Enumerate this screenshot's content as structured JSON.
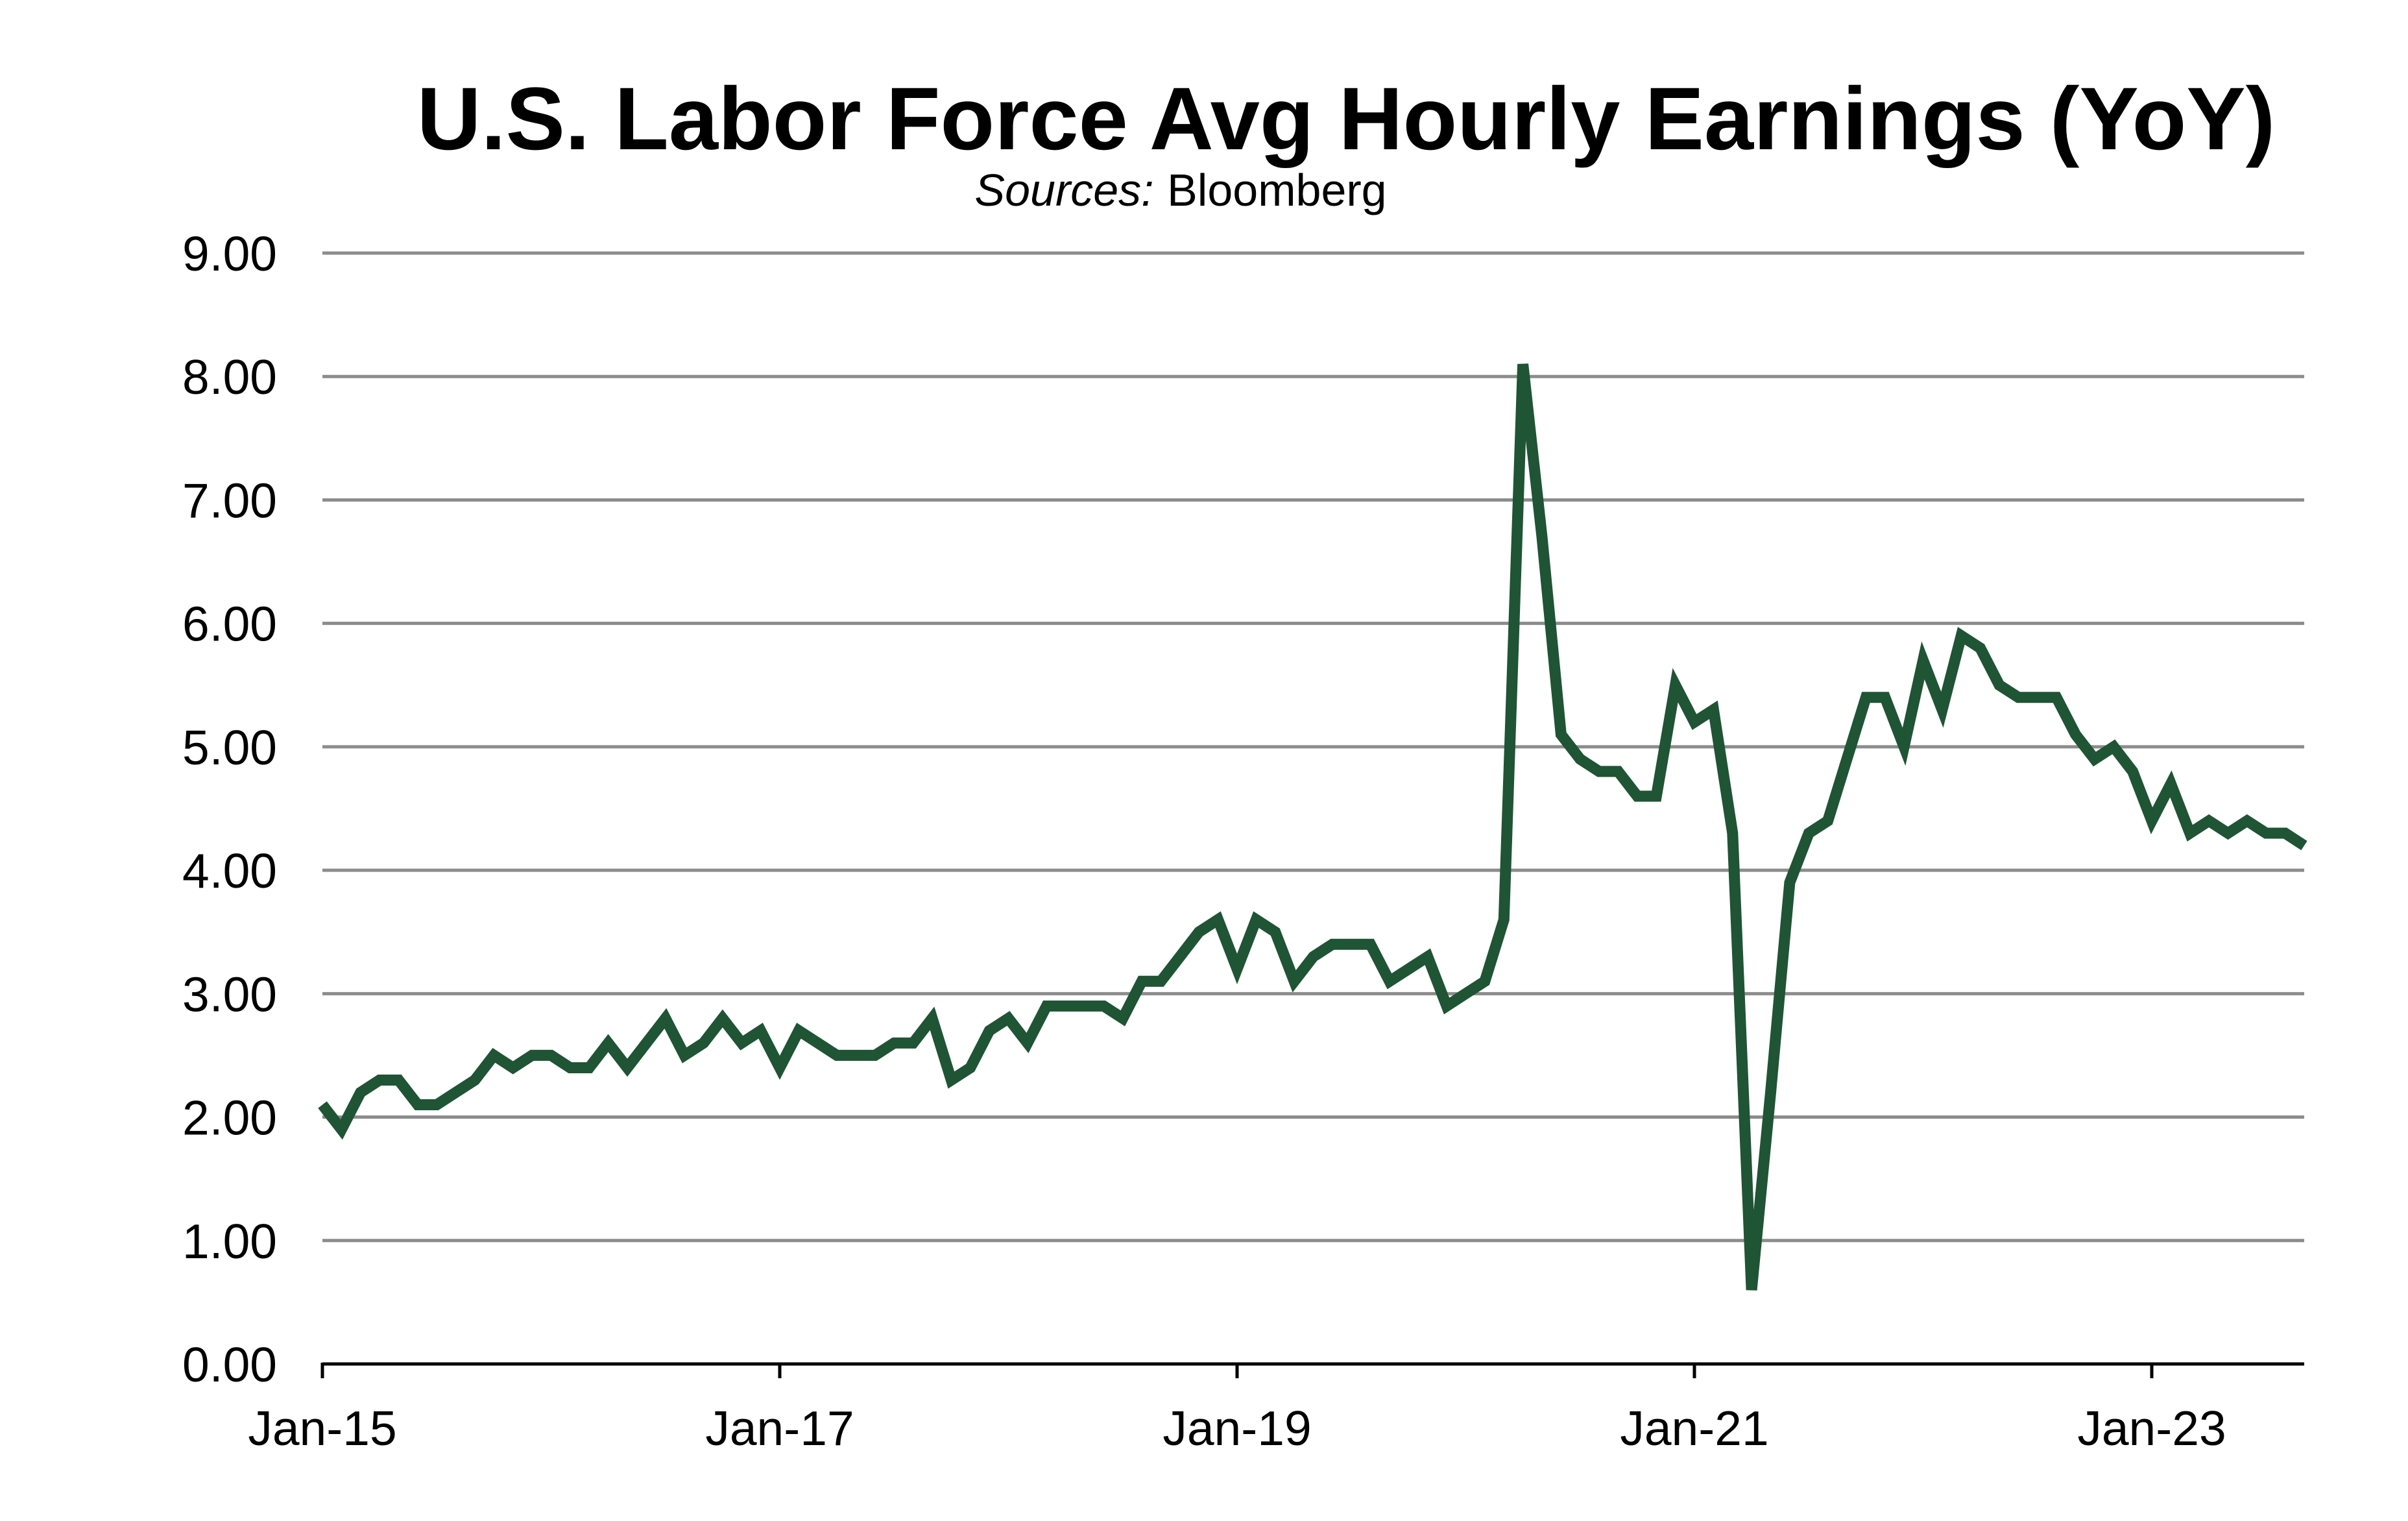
{
  "chart_data": {
    "type": "line",
    "title": "U.S. Labor Force Avg Hourly Earnings (YoY)",
    "subtitle_prefix": "Sources:",
    "subtitle_source": "Bloomberg",
    "xlabel": "",
    "ylabel": "",
    "ylim": [
      0,
      9
    ],
    "y_ticks": [
      0,
      1,
      2,
      3,
      4,
      5,
      6,
      7,
      8,
      9
    ],
    "y_tick_labels": [
      "0.00",
      "1.00",
      "2.00",
      "3.00",
      "4.00",
      "5.00",
      "6.00",
      "7.00",
      "8.00",
      "9.00"
    ],
    "x_range": [
      "2015-01",
      "2023-09"
    ],
    "x_ticks": [
      "2015-01",
      "2017-01",
      "2019-01",
      "2021-01",
      "2023-01"
    ],
    "x_tick_labels": [
      "Jan-15",
      "Jan-17",
      "Jan-19",
      "Jan-21",
      "Jan-23"
    ],
    "grid": true,
    "legend": "none",
    "line_color": "#1f5434",
    "series": [
      {
        "x": [
          "2015-01",
          "2015-02",
          "2015-03",
          "2015-04",
          "2015-05",
          "2015-06",
          "2015-07",
          "2015-08",
          "2015-09",
          "2015-10",
          "2015-11",
          "2015-12",
          "2016-01",
          "2016-02",
          "2016-03",
          "2016-04",
          "2016-05",
          "2016-06",
          "2016-07",
          "2016-08",
          "2016-09",
          "2016-10",
          "2016-11",
          "2016-12",
          "2017-01",
          "2017-02",
          "2017-03",
          "2017-04",
          "2017-05",
          "2017-06",
          "2017-07",
          "2017-08",
          "2017-09",
          "2017-10",
          "2017-11",
          "2017-12",
          "2018-01",
          "2018-02",
          "2018-03",
          "2018-04",
          "2018-05",
          "2018-06",
          "2018-07",
          "2018-08",
          "2018-09",
          "2018-10",
          "2018-11",
          "2018-12",
          "2019-01",
          "2019-02",
          "2019-03",
          "2019-04",
          "2019-05",
          "2019-06",
          "2019-07",
          "2019-08",
          "2019-09",
          "2019-10",
          "2019-11",
          "2019-12",
          "2020-01",
          "2020-02",
          "2020-03",
          "2020-04",
          "2020-05",
          "2020-06",
          "2020-07",
          "2020-08",
          "2020-09",
          "2020-10",
          "2020-11",
          "2020-12",
          "2021-01",
          "2021-02",
          "2021-03",
          "2021-04",
          "2021-05",
          "2021-06",
          "2021-07",
          "2021-08",
          "2021-09",
          "2021-10",
          "2021-11",
          "2021-12",
          "2022-01",
          "2022-02",
          "2022-03",
          "2022-04",
          "2022-05",
          "2022-06",
          "2022-07",
          "2022-08",
          "2022-09",
          "2022-10",
          "2022-11",
          "2022-12",
          "2023-01",
          "2023-02",
          "2023-03",
          "2023-04",
          "2023-05",
          "2023-06",
          "2023-07",
          "2023-08",
          "2023-09"
        ],
        "values": [
          2.1,
          1.9,
          2.2,
          2.3,
          2.3,
          2.1,
          2.1,
          2.2,
          2.3,
          2.5,
          2.4,
          2.5,
          2.5,
          2.4,
          2.4,
          2.6,
          2.4,
          2.6,
          2.8,
          2.5,
          2.6,
          2.8,
          2.6,
          2.7,
          2.4,
          2.7,
          2.6,
          2.5,
          2.5,
          2.5,
          2.6,
          2.6,
          2.8,
          2.3,
          2.4,
          2.7,
          2.8,
          2.6,
          2.9,
          2.9,
          2.9,
          2.9,
          2.8,
          3.1,
          3.1,
          3.3,
          3.5,
          3.6,
          3.2,
          3.6,
          3.5,
          3.1,
          3.3,
          3.4,
          3.4,
          3.4,
          3.1,
          3.2,
          3.3,
          2.9,
          3.0,
          3.1,
          3.6,
          8.1,
          6.7,
          5.1,
          4.9,
          4.8,
          4.8,
          4.6,
          4.6,
          5.5,
          5.2,
          5.3,
          4.3,
          0.6,
          2.2,
          3.9,
          4.3,
          4.4,
          4.9,
          5.4,
          5.4,
          5.0,
          5.7,
          5.3,
          5.9,
          5.8,
          5.5,
          5.4,
          5.4,
          5.4,
          5.1,
          4.9,
          5.0,
          4.8,
          4.4,
          4.7,
          4.3,
          4.4,
          4.3,
          4.4,
          4.3,
          4.3,
          4.2
        ]
      }
    ]
  }
}
